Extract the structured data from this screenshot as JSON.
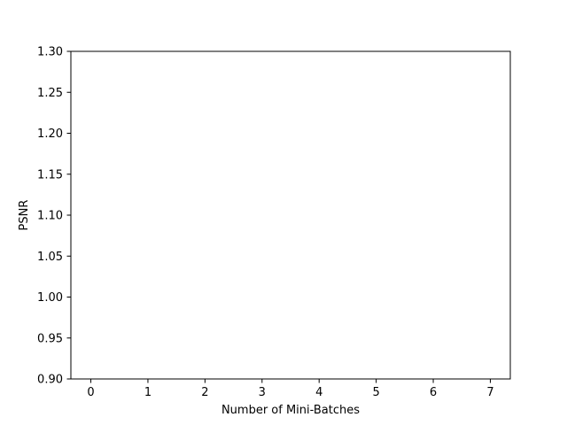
{
  "chart_data": {
    "type": "line",
    "title": "",
    "xlabel": "Number of Mini-Batches",
    "ylabel": "PSNR",
    "xlim": [
      -0.35,
      7.35
    ],
    "ylim": [
      0.9,
      1.3
    ],
    "x_ticks": [
      0,
      1,
      2,
      3,
      4,
      5,
      6,
      7
    ],
    "x_tick_labels": [
      "0",
      "1",
      "2",
      "3",
      "4",
      "5",
      "6",
      "7"
    ],
    "y_ticks": [
      0.9,
      0.95,
      1.0,
      1.05,
      1.1,
      1.15,
      1.2,
      1.25,
      1.3
    ],
    "y_tick_labels": [
      "0.90",
      "0.95",
      "1.00",
      "1.05",
      "1.10",
      "1.15",
      "1.20",
      "1.25",
      "1.30"
    ],
    "grid": false,
    "series": []
  }
}
